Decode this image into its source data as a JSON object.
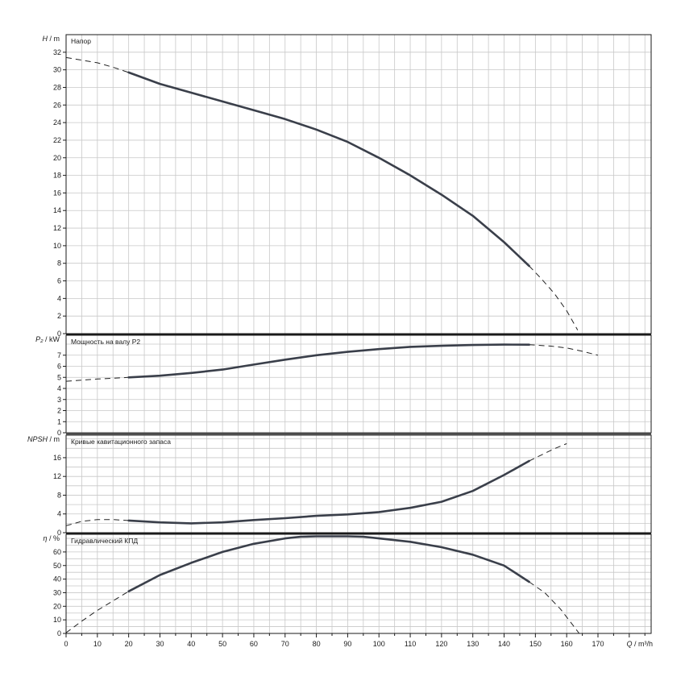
{
  "chart_data": {
    "type": "line",
    "x_axis": {
      "label_main": "Q",
      "label_unit": "/ m³/h",
      "range": [
        0,
        187
      ],
      "tick_labels": [
        0,
        10,
        20,
        30,
        40,
        50,
        60,
        70,
        80,
        90,
        100,
        110,
        120,
        130,
        140,
        150,
        160,
        170
      ],
      "minor_step": 5
    },
    "grid": true,
    "panels": [
      {
        "id": "head",
        "title": "Напор",
        "ylabel_main": "H",
        "ylabel_unit": "/ m",
        "ylim": [
          0,
          34
        ],
        "tick_labels": [
          0,
          2,
          4,
          6,
          8,
          10,
          12,
          14,
          16,
          18,
          20,
          22,
          24,
          26,
          28,
          30,
          32
        ],
        "grid_step": 2,
        "solid": {
          "x": [
            20,
            30,
            40,
            50,
            60,
            70,
            80,
            90,
            100,
            110,
            120,
            130,
            140,
            148
          ],
          "y": [
            29.7,
            28.4,
            27.4,
            26.4,
            25.4,
            24.4,
            23.2,
            21.8,
            20.0,
            18.0,
            15.8,
            13.4,
            10.4,
            7.7
          ]
        },
        "dashed": [
          {
            "x": [
              0,
              5,
              10,
              15,
              20
            ],
            "y": [
              31.4,
              31.1,
              30.8,
              30.3,
              29.7
            ]
          },
          {
            "x": [
              148,
              152,
              156,
              160,
              163.5
            ],
            "y": [
              7.7,
              6.2,
              4.6,
              2.6,
              0.4
            ]
          }
        ]
      },
      {
        "id": "power",
        "title": "Мощность на валу P2",
        "ylabel_main": "P₂",
        "ylabel_unit": "/ kW",
        "ylim": [
          0,
          8.8
        ],
        "tick_labels": [
          0,
          1,
          2,
          3,
          4,
          5,
          6,
          7
        ],
        "grid_step": 1,
        "solid": {
          "x": [
            20,
            30,
            40,
            50,
            60,
            70,
            80,
            90,
            100,
            110,
            120,
            130,
            140,
            148
          ],
          "y": [
            5.0,
            5.15,
            5.4,
            5.7,
            6.15,
            6.6,
            7.0,
            7.3,
            7.55,
            7.75,
            7.85,
            7.92,
            7.96,
            7.95
          ]
        },
        "dashed": [
          {
            "x": [
              0,
              10,
              20
            ],
            "y": [
              4.65,
              4.85,
              5.0
            ]
          },
          {
            "x": [
              148,
              155,
              160,
              165,
              170
            ],
            "y": [
              7.95,
              7.82,
              7.65,
              7.35,
              7.0
            ]
          }
        ]
      },
      {
        "id": "npsh",
        "title": "Кривые кавитационного запаса",
        "ylabel_main": "NPSH",
        "ylabel_unit": "/ m",
        "ylim": [
          0,
          20.8
        ],
        "tick_labels": [
          0,
          4,
          8,
          12,
          16
        ],
        "grid_step": 2,
        "solid": {
          "x": [
            20,
            30,
            40,
            50,
            60,
            70,
            80,
            90,
            100,
            110,
            120,
            130,
            140,
            148
          ],
          "y": [
            2.6,
            2.2,
            2.0,
            2.2,
            2.7,
            3.1,
            3.6,
            3.9,
            4.4,
            5.3,
            6.6,
            8.9,
            12.3,
            15.3
          ]
        },
        "dashed": [
          {
            "x": [
              0,
              5,
              10,
              15,
              20
            ],
            "y": [
              1.5,
              2.4,
              2.8,
              2.8,
              2.6
            ]
          },
          {
            "x": [
              148,
              152,
              156,
              160
            ],
            "y": [
              15.3,
              16.6,
              17.9,
              19.0
            ]
          }
        ]
      },
      {
        "id": "efficiency",
        "title": "Гидравлический КПД",
        "ylabel_main": "η",
        "ylabel_unit": "/ %",
        "ylim": [
          0,
          73
        ],
        "tick_labels": [
          0,
          10,
          20,
          30,
          40,
          50,
          60
        ],
        "grid_step": 5,
        "solid": {
          "x": [
            20,
            30,
            40,
            50,
            60,
            70,
            75,
            80,
            90,
            95,
            100,
            110,
            120,
            130,
            140,
            148
          ],
          "y": [
            31,
            43,
            52,
            60,
            66,
            70,
            71.2,
            71.5,
            71.5,
            71.2,
            70,
            67.5,
            63.5,
            58,
            50,
            38
          ]
        },
        "dashed": [
          {
            "x": [
              0,
              5,
              10,
              15,
              20
            ],
            "y": [
              0.5,
              9,
              17,
              24,
              31
            ]
          },
          {
            "x": [
              148,
              153,
              158,
              161,
              164
            ],
            "y": [
              38,
              30,
              18,
              9,
              0
            ]
          }
        ]
      }
    ]
  }
}
